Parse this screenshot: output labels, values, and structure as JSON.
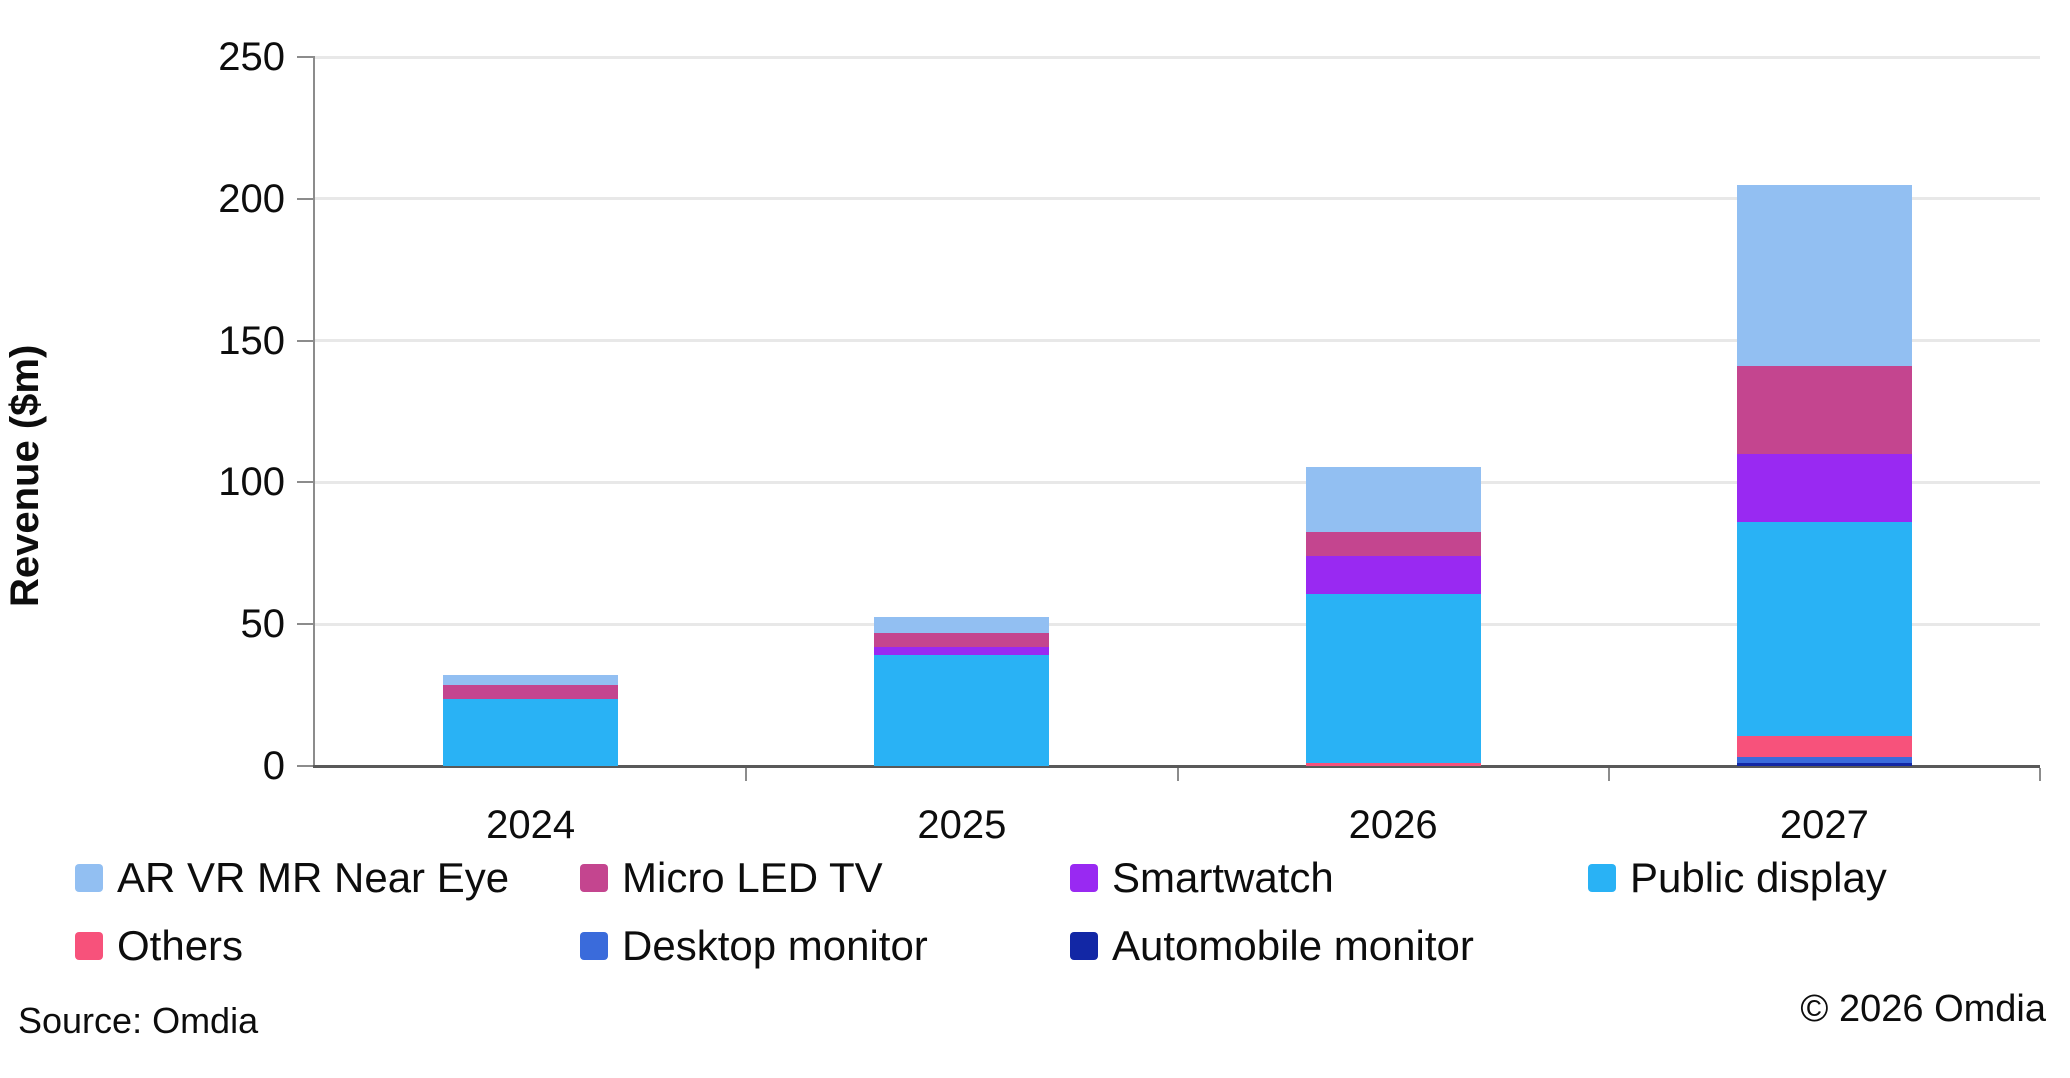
{
  "chart_data": {
    "type": "bar",
    "stacked": true,
    "title": "",
    "xlabel": "",
    "ylabel": "Revenue ($m)",
    "ylim": [
      0,
      250
    ],
    "yticks": [
      0,
      50,
      100,
      150,
      200,
      250
    ],
    "grid": true,
    "legend_position": "bottom",
    "categories": [
      "2024",
      "2025",
      "2026",
      "2027"
    ],
    "series": [
      {
        "name": "Automobile monitor",
        "color": "#1227a5",
        "values": [
          0,
          0,
          0,
          1
        ]
      },
      {
        "name": "Desktop monitor",
        "color": "#3a6bdb",
        "values": [
          0,
          0,
          0,
          2
        ]
      },
      {
        "name": "Others",
        "color": "#f7527b",
        "values": [
          0,
          0,
          1,
          7.5
        ]
      },
      {
        "name": "Public display",
        "color": "#29b2f5",
        "values": [
          23.5,
          39,
          59.5,
          75.5
        ]
      },
      {
        "name": "Smartwatch",
        "color": "#9929f2",
        "values": [
          0,
          3,
          13.5,
          24
        ]
      },
      {
        "name": "Micro LED TV",
        "color": "#c4458f",
        "values": [
          5,
          5,
          8.5,
          31
        ]
      },
      {
        "name": "AR VR MR Near Eye",
        "color": "#92bff2",
        "values": [
          3.5,
          5.5,
          23,
          64
        ]
      }
    ],
    "totals": [
      32,
      52.5,
      105.5,
      205
    ]
  },
  "legend": {
    "rows": [
      [
        "AR VR MR Near Eye",
        "Micro LED TV",
        "Smartwatch",
        "Public display"
      ],
      [
        "Others",
        "Desktop monitor",
        "Automobile monitor"
      ]
    ]
  },
  "footer": {
    "source": "Source: Omdia",
    "copyright": "© 2026 Omdia"
  }
}
